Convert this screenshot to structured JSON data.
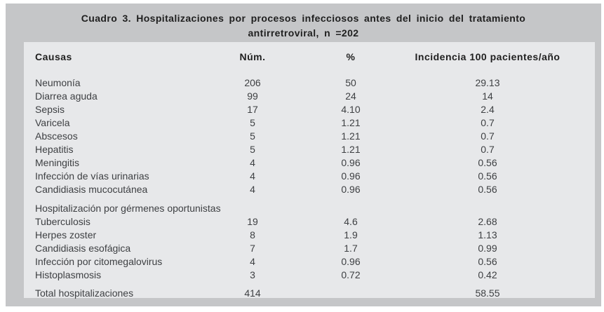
{
  "table": {
    "title_line1": "Cuadro 3. Hospitalizaciones por procesos infecciosos antes del inicio del tratamiento",
    "title_line2": "antirretroviral, n =202",
    "columns": {
      "causas": "Causas",
      "num": "Núm.",
      "pct": "%",
      "incidencia": "Incidencia 100 pacientes/año"
    },
    "rows": [
      {
        "causa": "Neumonía",
        "num": "206",
        "pct": "50",
        "incidencia": "29.13"
      },
      {
        "causa": "Diarrea aguda",
        "num": "99",
        "pct": "24",
        "incidencia": "14"
      },
      {
        "causa": "Sepsis",
        "num": "17",
        "pct": "4.10",
        "incidencia": "2.4"
      },
      {
        "causa": "Varicela",
        "num": "5",
        "pct": "1.21",
        "incidencia": "0.7"
      },
      {
        "causa": "Abscesos",
        "num": "5",
        "pct": "1.21",
        "incidencia": "0.7"
      },
      {
        "causa": "Hepatitis",
        "num": "5",
        "pct": "1.21",
        "incidencia": "0.7"
      },
      {
        "causa": "Meningitis",
        "num": "4",
        "pct": "0.96",
        "incidencia": "0.56"
      },
      {
        "causa": "Infección de vías urinarias",
        "num": "4",
        "pct": "0.96",
        "incidencia": "0.56"
      },
      {
        "causa": "Candidiasis mucocutánea",
        "num": "4",
        "pct": "0.96",
        "incidencia": "0.56"
      }
    ],
    "section_header": "Hospitalización por gérmenes oportunistas",
    "section_rows": [
      {
        "causa": "Tuberculosis",
        "num": "19",
        "pct": "4.6",
        "incidencia": "2.68"
      },
      {
        "causa": "Herpes zoster",
        "num": "8",
        "pct": "1.9",
        "incidencia": "1.13"
      },
      {
        "causa": "Candidiasis esofágica",
        "num": "7",
        "pct": "1.7",
        "incidencia": "0.99"
      },
      {
        "causa": "Infección por citomegalovirus",
        "num": "4",
        "pct": "0.96",
        "incidencia": "0.56"
      },
      {
        "causa": "Histoplasmosis",
        "num": "3",
        "pct": "0.72",
        "incidencia": "0.42"
      }
    ],
    "total_row": {
      "causa": "Total hospitalizaciones",
      "num": "414",
      "pct": "",
      "incidencia": "58.55"
    },
    "colors": {
      "frame_gray": "#c5c6c8",
      "panel_gray": "#e7e8ea",
      "text_dark": "#1f1f1f",
      "text_body": "#3e4043"
    }
  }
}
